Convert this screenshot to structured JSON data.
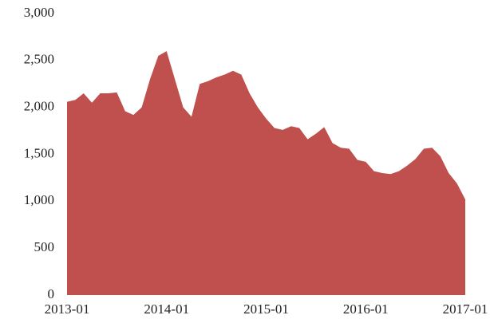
{
  "chart_data": {
    "type": "area",
    "color": "#c0504d",
    "x": [
      "2013-01",
      "2013-02",
      "2013-03",
      "2013-04",
      "2013-05",
      "2013-06",
      "2013-07",
      "2013-08",
      "2013-09",
      "2013-10",
      "2013-11",
      "2013-12",
      "2014-01",
      "2014-02",
      "2014-03",
      "2014-04",
      "2014-05",
      "2014-06",
      "2014-07",
      "2014-08",
      "2014-09",
      "2014-10",
      "2014-11",
      "2014-12",
      "2015-01",
      "2015-02",
      "2015-03",
      "2015-04",
      "2015-05",
      "2015-06",
      "2015-07",
      "2015-08",
      "2015-09",
      "2015-10",
      "2015-11",
      "2015-12",
      "2016-01",
      "2016-02",
      "2016-03",
      "2016-04",
      "2016-05",
      "2016-06",
      "2016-07",
      "2016-08",
      "2016-09",
      "2016-10",
      "2016-11",
      "2016-12",
      "2017-01"
    ],
    "values": [
      2060,
      2080,
      2150,
      2050,
      2150,
      2150,
      2160,
      1960,
      1920,
      2000,
      2300,
      2550,
      2600,
      2300,
      2000,
      1900,
      2250,
      2280,
      2320,
      2350,
      2390,
      2350,
      2150,
      2000,
      1880,
      1780,
      1760,
      1800,
      1780,
      1660,
      1720,
      1790,
      1620,
      1570,
      1560,
      1440,
      1420,
      1320,
      1300,
      1290,
      1320,
      1380,
      1450,
      1560,
      1570,
      1480,
      1300,
      1190,
      1020
    ],
    "xticks": [
      "2013-01",
      "2014-01",
      "2015-01",
      "2016-01",
      "2017-01"
    ],
    "ylim": [
      0,
      3000
    ],
    "yticks": [
      0,
      500,
      {
        "value": 1000,
        "label": "1,000"
      },
      {
        "value": 1500,
        "label": "1,500"
      },
      {
        "value": 2000,
        "label": "2,000"
      },
      {
        "value": 2500,
        "label": "2,500"
      },
      {
        "value": 3000,
        "label": "3,000"
      }
    ]
  }
}
